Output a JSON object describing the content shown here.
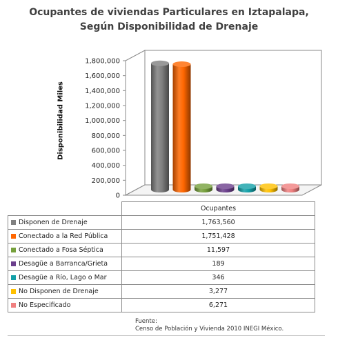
{
  "chart_data": {
    "type": "bar",
    "title": [
      "Ocupantes de viviendas Particulares en Iztapalapa,",
      "Según Disponibilidad de Drenaje"
    ],
    "ylabel": "Disponibilidad  Miles",
    "ylim": [
      0,
      1800000
    ],
    "yticks": [
      "0",
      "200,000",
      "400,000",
      "600,000",
      "800,000",
      "1,000,000",
      "1,200,000",
      "1,400,000",
      "1,600,000",
      "1,800,000"
    ],
    "category": "Ocupantes",
    "series": [
      {
        "name": "Disponen de Drenaje",
        "value": 1763560,
        "label": "1,763,560",
        "color": "#808080"
      },
      {
        "name": "Conectado a la Red Pública",
        "value": 1751428,
        "label": "1,751,428",
        "color": "#ff6600"
      },
      {
        "name": "Conectado a Fosa Séptica",
        "value": 11597,
        "label": "11,597",
        "color": "#76a03c"
      },
      {
        "name": "Desagüe a Barranca/Grieta",
        "value": 189,
        "label": "189",
        "color": "#6b3f8c"
      },
      {
        "name": "Desagüe a Río, Lago o Mar",
        "value": 346,
        "label": "346",
        "color": "#13a0a8"
      },
      {
        "name": "No Disponen de Drenaje",
        "value": 3277,
        "label": "3,277",
        "color": "#ffc000"
      },
      {
        "name": "No Especificado",
        "value": 6271,
        "label": "6,271",
        "color": "#f08080"
      }
    ],
    "grid": false,
    "legend": "table-below"
  },
  "source": [
    "Fuente:",
    "Censo de Población y Vivienda 2010 INEGI México."
  ]
}
